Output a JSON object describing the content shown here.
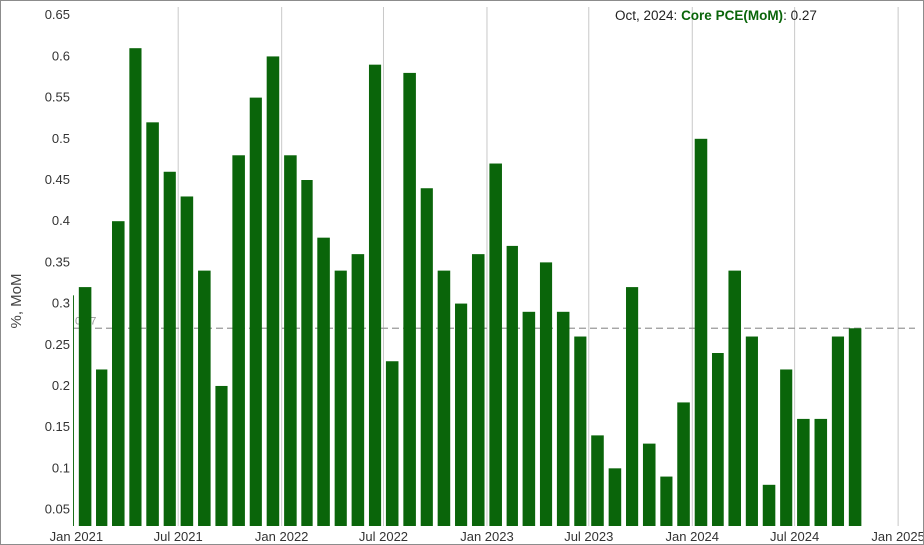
{
  "header": {
    "period": "Oct, 2024",
    "series_name": "Core PCE(MoM)",
    "value": "0.27"
  },
  "colors": {
    "bar": "#0a650a",
    "series_label": "#0a650a",
    "grid": "#c8c8c8",
    "reference_line": "#999999"
  },
  "chart_data": {
    "type": "bar",
    "ylabel": "%, MoM",
    "ylim": [
      0.03,
      0.66
    ],
    "yticks": [
      0.05,
      0.1,
      0.15,
      0.2,
      0.25,
      0.3,
      0.35,
      0.4,
      0.45,
      0.5,
      0.55,
      0.6,
      0.65
    ],
    "xlim": [
      "2020-12-26",
      "2025-01-31"
    ],
    "xticks": [
      {
        "label": "Jan 2021",
        "date": "2021-01-01"
      },
      {
        "label": "Jul 2021",
        "date": "2021-07-01"
      },
      {
        "label": "Jan 2022",
        "date": "2022-01-01"
      },
      {
        "label": "Jul 2022",
        "date": "2022-07-01"
      },
      {
        "label": "Jan 2023",
        "date": "2023-01-01"
      },
      {
        "label": "Jul 2023",
        "date": "2023-07-01"
      },
      {
        "label": "Jan 2024",
        "date": "2024-01-01"
      },
      {
        "label": "Jul 2024",
        "date": "2024-07-01"
      },
      {
        "label": "Jan 2025",
        "date": "2025-01-01"
      }
    ],
    "reference_line": {
      "value": 0.27,
      "label": "0.27"
    },
    "series": [
      {
        "name": "Core PCE(MoM)",
        "dates": [
          "2020-12",
          "2021-01",
          "2021-02",
          "2021-03",
          "2021-04",
          "2021-05",
          "2021-06",
          "2021-07",
          "2021-08",
          "2021-09",
          "2021-10",
          "2021-11",
          "2021-12",
          "2022-01",
          "2022-02",
          "2022-03",
          "2022-04",
          "2022-05",
          "2022-06",
          "2022-07",
          "2022-08",
          "2022-09",
          "2022-10",
          "2022-11",
          "2022-12",
          "2023-01",
          "2023-02",
          "2023-03",
          "2023-04",
          "2023-05",
          "2023-06",
          "2023-07",
          "2023-08",
          "2023-09",
          "2023-10",
          "2023-11",
          "2023-12",
          "2024-01",
          "2024-02",
          "2024-03",
          "2024-04",
          "2024-05",
          "2024-06",
          "2024-07",
          "2024-08",
          "2024-09",
          "2024-10"
        ],
        "values": [
          0.31,
          0.32,
          0.22,
          0.4,
          0.61,
          0.52,
          0.46,
          0.43,
          0.34,
          0.2,
          0.48,
          0.55,
          0.6,
          0.48,
          0.45,
          0.38,
          0.34,
          0.36,
          0.59,
          0.23,
          0.58,
          0.44,
          0.34,
          0.3,
          0.36,
          0.47,
          0.37,
          0.29,
          0.35,
          0.29,
          0.26,
          0.14,
          0.1,
          0.32,
          0.13,
          0.09,
          0.18,
          0.5,
          0.24,
          0.34,
          0.26,
          0.08,
          0.22,
          0.16,
          0.16,
          0.26,
          0.27
        ]
      }
    ]
  }
}
